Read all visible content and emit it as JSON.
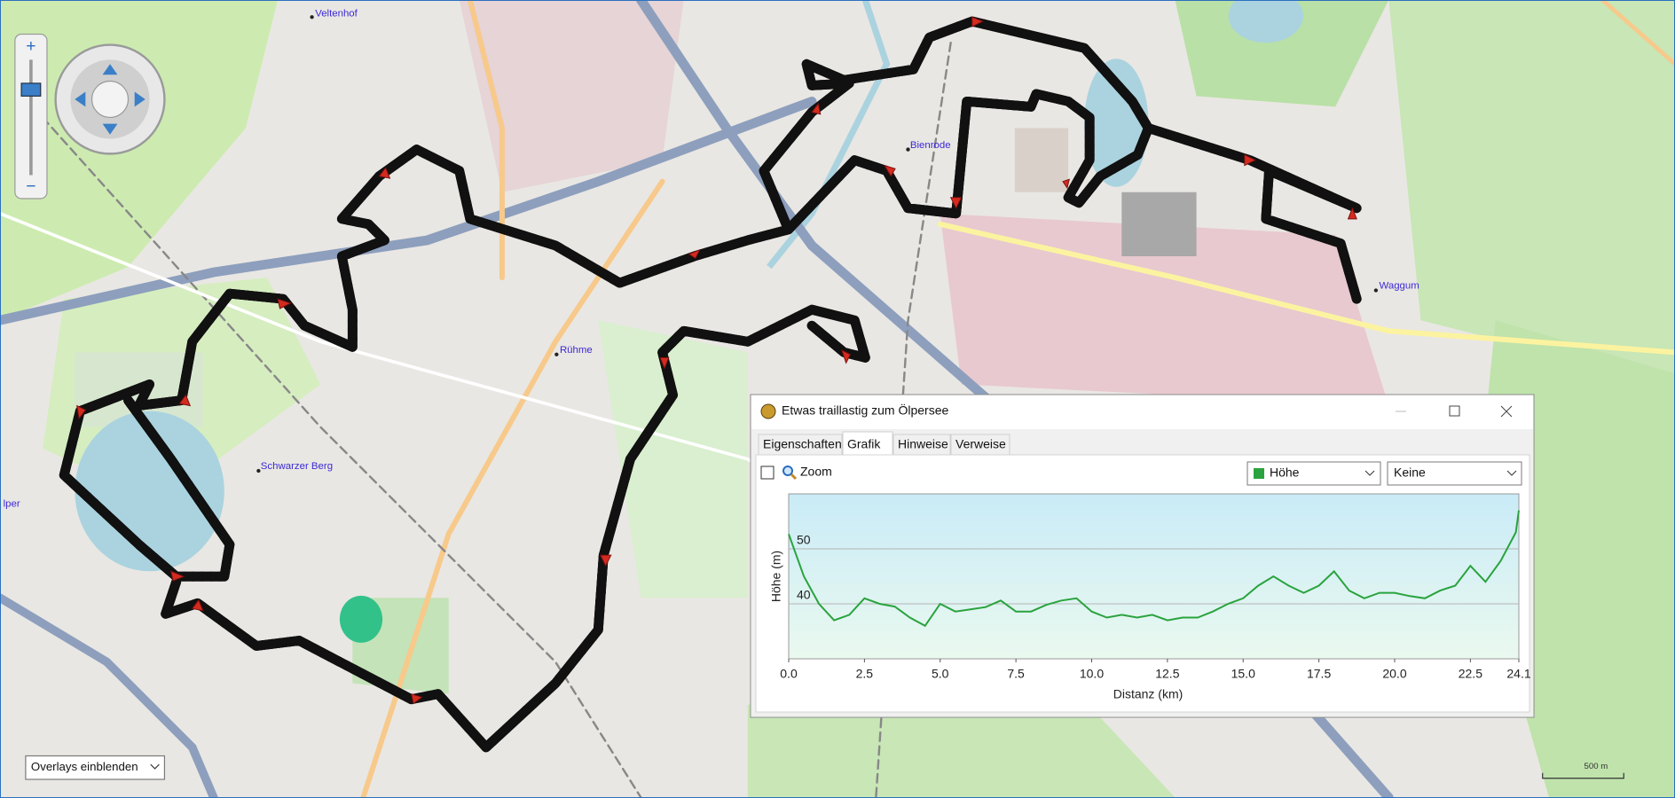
{
  "map": {
    "places": [
      "Veltenhof",
      "Bienrode",
      "Waggum",
      "Rühme",
      "Schwarzer Berg",
      "lper"
    ],
    "scale_label": "500 m",
    "overlay_dropdown": "Overlays einblenden"
  },
  "window": {
    "title": "Etwas traillastig zum Ölpersee",
    "tabs": [
      "Eigenschaften",
      "Grafik",
      "Hinweise",
      "Verweise"
    ],
    "zoom_label": "Zoom",
    "second_dropdown": "Keine"
  },
  "chart_data": {
    "type": "line",
    "x_label": "Distanz  (km)",
    "y_label": "Höhe (m)",
    "x": [
      0,
      0.5,
      1,
      1.5,
      2,
      2.5,
      3,
      3.5,
      4,
      4.5,
      5,
      5.5,
      6,
      6.5,
      7,
      7.5,
      8,
      8.5,
      9,
      9.5,
      10,
      10.5,
      11,
      11.5,
      12,
      12.5,
      13,
      13.5,
      14,
      14.5,
      15,
      15.5,
      16,
      16.5,
      17,
      17.5,
      18,
      18.5,
      19,
      19.5,
      20,
      20.5,
      21,
      21.5,
      22,
      22.5,
      23,
      23.5,
      24,
      24.1
    ],
    "series": [
      {
        "name": "Höhe",
        "color": "#2aa33e",
        "values": [
          52.7,
          45,
          40,
          37,
          38,
          41,
          40,
          39.5,
          37.5,
          36,
          40,
          38.6,
          39,
          39.4,
          40.6,
          38.6,
          38.6,
          39.8,
          40.6,
          41,
          38.6,
          37.5,
          38,
          37.5,
          38,
          37,
          37.5,
          37.5,
          38.6,
          40,
          41,
          43.3,
          45,
          43.3,
          42,
          43.3,
          45.9,
          42.4,
          41,
          42,
          42,
          41.4,
          41,
          42.4,
          43.3,
          46.9,
          44,
          47.8,
          53,
          57
        ]
      }
    ],
    "xlim": [
      0,
      24.1
    ],
    "ylim": [
      30,
      60
    ],
    "xticks": [
      {
        "value": 0,
        "label": "0.0"
      },
      2.5,
      {
        "value": 5,
        "label": "5.0"
      },
      7.5,
      {
        "value": 10,
        "label": "10.0"
      },
      12.5,
      {
        "value": 15,
        "label": "15.0"
      },
      17.5,
      {
        "value": 20,
        "label": "20.0"
      },
      22.5,
      24.1
    ],
    "yticks": [
      40,
      50
    ],
    "grid": true
  }
}
